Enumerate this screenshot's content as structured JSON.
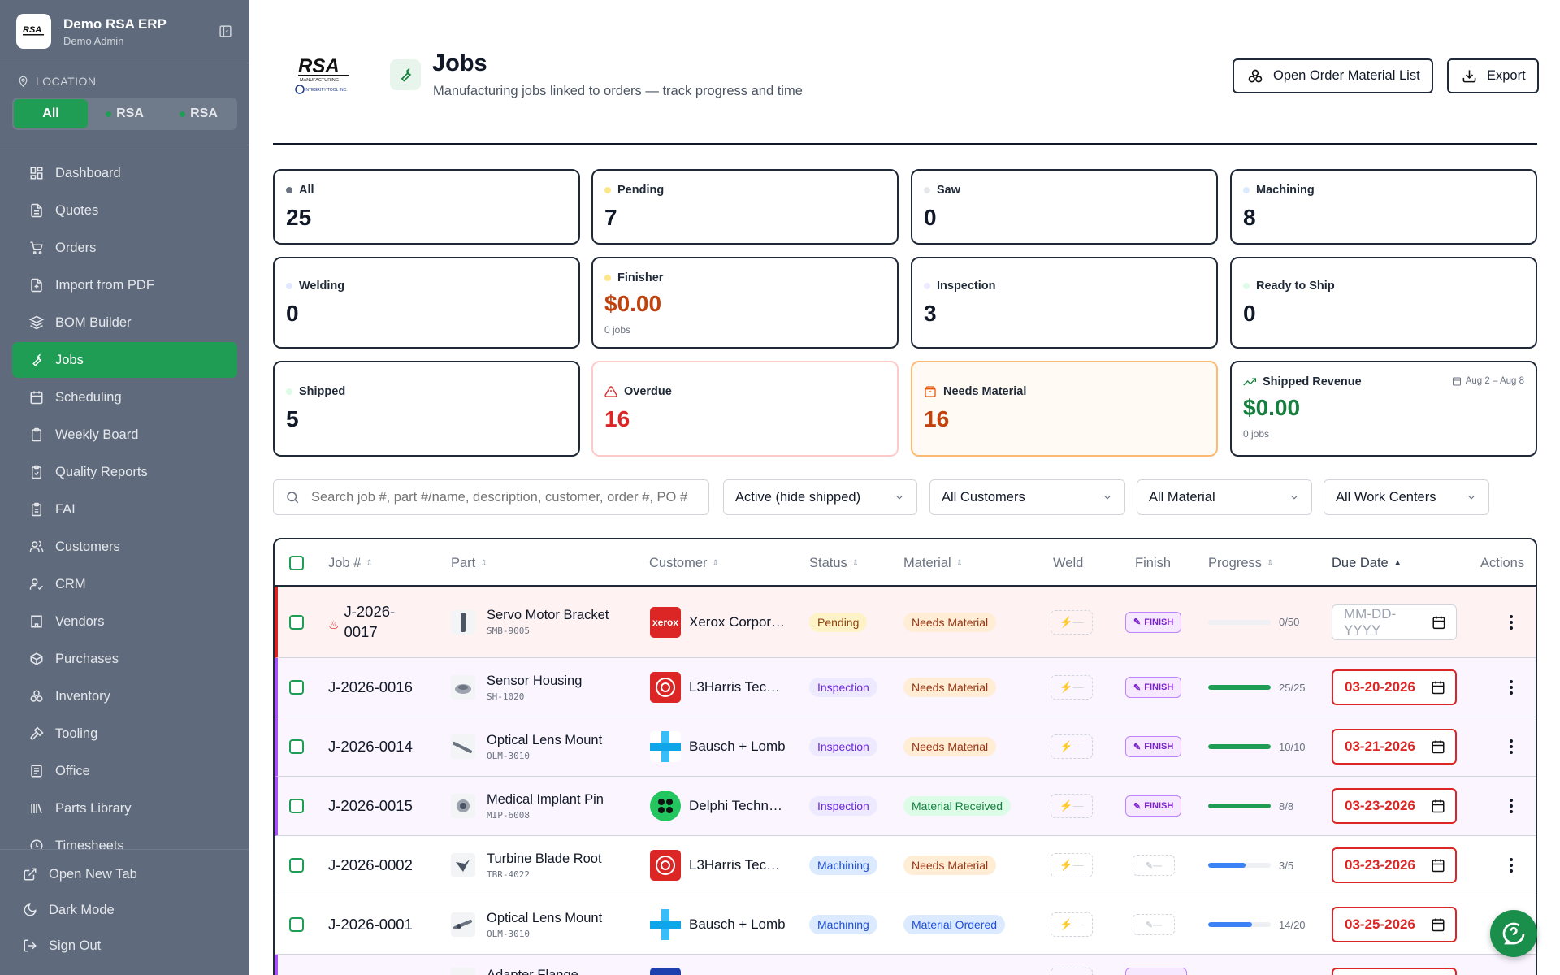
{
  "app": {
    "name": "Demo RSA ERP",
    "user": "Demo Admin"
  },
  "location": {
    "label": "LOCATION",
    "options": [
      "All",
      "RSA",
      "RSA"
    ]
  },
  "nav": [
    "Dashboard",
    "Quotes",
    "Orders",
    "Import from PDF",
    "BOM Builder",
    "Jobs",
    "Scheduling",
    "Weekly Board",
    "Quality Reports",
    "FAI",
    "Customers",
    "CRM",
    "Vendors",
    "Purchases",
    "Inventory",
    "Tooling",
    "Office",
    "Parts Library",
    "Timesheets"
  ],
  "sidebar_bottom": [
    "Open New Tab",
    "Dark Mode",
    "Sign Out"
  ],
  "header": {
    "title": "Jobs",
    "subtitle": "Manufacturing jobs linked to orders — track progress and time",
    "open_material_label": "Open Order Material List",
    "export_label": "Export",
    "logo_text": "RSA",
    "logo_sub": "MANUFACTURING",
    "logo_sub2": "INTEGRITY TOOL INC."
  },
  "stats": {
    "all": {
      "label": "All",
      "value": "25"
    },
    "pending": {
      "label": "Pending",
      "value": "7"
    },
    "saw": {
      "label": "Saw",
      "value": "0"
    },
    "machining": {
      "label": "Machining",
      "value": "8"
    },
    "welding": {
      "label": "Welding",
      "value": "0"
    },
    "finisher": {
      "label": "Finisher",
      "value": "$0.00",
      "note": "0 jobs"
    },
    "inspection": {
      "label": "Inspection",
      "value": "3"
    },
    "ready": {
      "label": "Ready to Ship",
      "value": "0"
    },
    "shipped": {
      "label": "Shipped",
      "value": "5"
    },
    "overdue": {
      "label": "Overdue",
      "value": "16"
    },
    "needs_material": {
      "label": "Needs Material",
      "value": "16"
    },
    "revenue": {
      "label": "Shipped Revenue",
      "range": "Aug 2 – Aug 8",
      "value": "$0.00",
      "note": "0 jobs"
    }
  },
  "filters": {
    "search_placeholder": "Search job #, part #/name, description, customer, order #, PO #",
    "status": "Active (hide shipped)",
    "customer": "All Customers",
    "material": "All Material",
    "work_center": "All Work Centers"
  },
  "table": {
    "headers": {
      "job": "Job #",
      "part": "Part",
      "customer": "Customer",
      "status": "Status",
      "material": "Material",
      "weld": "Weld",
      "finish": "Finish",
      "progress": "Progress",
      "due": "Due Date",
      "actions": "Actions"
    },
    "finish_label": "FINISH",
    "date_placeholder": "MM-DD-YYYY",
    "rows": [
      {
        "job_line1": "J-2026-",
        "job_line2": "0017",
        "part": "Servo Motor Bracket",
        "part_no": "SMB-9005",
        "customer": "Xerox Corpor…",
        "logo_text": "xerox",
        "status": "Pending",
        "material": "Needs Material",
        "progress": "0/50",
        "progress_frac": 0.0,
        "due": ""
      },
      {
        "job": "J-2026-0016",
        "part": "Sensor Housing",
        "part_no": "SH-1020",
        "customer": "L3Harris Tec…",
        "status": "Inspection",
        "material": "Needs Material",
        "progress": "25/25",
        "progress_frac": 1.0,
        "due": "03-20-2026"
      },
      {
        "job": "J-2026-0014",
        "part": "Optical Lens Mount",
        "part_no": "OLM-3010",
        "customer": "Bausch + Lomb",
        "status": "Inspection",
        "material": "Needs Material",
        "progress": "10/10",
        "progress_frac": 1.0,
        "due": "03-21-2026"
      },
      {
        "job": "J-2026-0015",
        "part": "Medical Implant Pin",
        "part_no": "MIP-6008",
        "customer": "Delphi Techn…",
        "status": "Inspection",
        "material": "Material Received",
        "progress": "8/8",
        "progress_frac": 1.0,
        "due": "03-23-2026"
      },
      {
        "job": "J-2026-0002",
        "part": "Turbine Blade Root",
        "part_no": "TBR-4022",
        "customer": "L3Harris Tec…",
        "status": "Machining",
        "material": "Needs Material",
        "progress": "3/5",
        "progress_frac": 0.6,
        "due": "03-23-2026"
      },
      {
        "job": "J-2026-0001",
        "part": "Optical Lens Mount",
        "part_no": "OLM-3010",
        "customer": "Bausch + Lomb",
        "status": "Machining",
        "material": "Material Ordered",
        "progress": "14/20",
        "progress_frac": 0.7,
        "due": "03-25-2026"
      },
      {
        "part": "Adapter Flange"
      }
    ]
  },
  "colors": {
    "brand_green": "#1f9d55",
    "sidebar": "#5f6b7d",
    "overdue_red": "#dc2626",
    "finish_purple": "#7e22ce",
    "machining_blue": "#3b82f6"
  }
}
